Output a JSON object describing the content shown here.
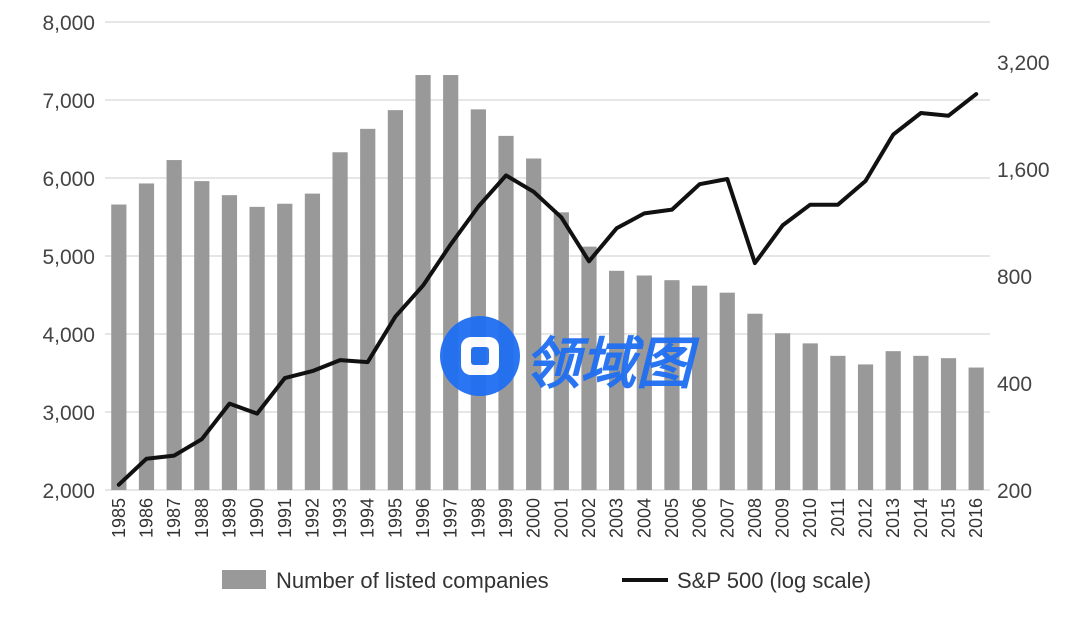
{
  "chart_data": {
    "type": "bar",
    "categories": [
      "1985",
      "1986",
      "1987",
      "1988",
      "1989",
      "1990",
      "1991",
      "1992",
      "1993",
      "1994",
      "1995",
      "1996",
      "1997",
      "1998",
      "1999",
      "2000",
      "2001",
      "2002",
      "2003",
      "2004",
      "2005",
      "2006",
      "2007",
      "2008",
      "2009",
      "2010",
      "2011",
      "2012",
      "2013",
      "2014",
      "2015",
      "2016"
    ],
    "series": [
      {
        "name": "Number of listed companies",
        "type": "bar",
        "axis": "left",
        "color": "#999999",
        "values": [
          5660,
          5930,
          6230,
          5960,
          5780,
          5630,
          5670,
          5800,
          6330,
          6630,
          6870,
          7320,
          7320,
          6880,
          6540,
          6250,
          5560,
          5120,
          4810,
          4750,
          4690,
          4620,
          4530,
          4260,
          4010,
          3880,
          3720,
          3610,
          3780,
          3720,
          3690,
          3570
        ]
      },
      {
        "name": "S&P 500 (log scale)",
        "type": "line",
        "axis": "right",
        "color": "#111111",
        "values": [
          207,
          245,
          250,
          278,
          350,
          328,
          413,
          432,
          464,
          458,
          615,
          752,
          982,
          1255,
          1535,
          1380,
          1170,
          880,
          1090,
          1200,
          1230,
          1450,
          1500,
          870,
          1110,
          1270,
          1270,
          1480,
          2000,
          2300,
          2260,
          2600
        ]
      }
    ],
    "y_left": {
      "ticks": [
        "2,000",
        "3,000",
        "4,000",
        "5,000",
        "6,000",
        "7,000",
        "8,000"
      ],
      "min": 2000,
      "max": 8000
    },
    "y_right": {
      "scale": "log",
      "ticks": [
        "200",
        "400",
        "800",
        "1,600",
        "3,200"
      ],
      "min": 200,
      "max": 3200
    },
    "grid": true,
    "legend_position": "bottom-center",
    "legend": [
      {
        "label": "Number of listed companies",
        "symbol": "bar"
      },
      {
        "label": "S&P 500 (log scale)",
        "symbol": "line"
      }
    ]
  },
  "watermark": {
    "text": "领域图",
    "color": "#1f6ef2",
    "icon": "logo-icon"
  }
}
